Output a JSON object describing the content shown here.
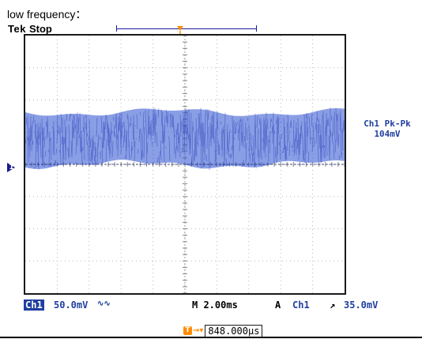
{
  "caption": "low frequency：",
  "scope": {
    "brand": "Tek",
    "acquisition_status": "Stop",
    "trigger_position_marker": "T",
    "ground_marker_label": "1"
  },
  "measurement": {
    "label": "Ch1 Pk-Pk",
    "value": "104mV"
  },
  "status_bar": {
    "channel_badge": "Ch1",
    "volts_per_div": "50.0mV",
    "coupling_symbol": "∿∿",
    "timebase": "M 2.00ms",
    "trigger_mode": "A",
    "trigger_source": "Ch1",
    "trigger_slope": "↗",
    "trigger_level": "35.0mV"
  },
  "delay": {
    "icon": "T",
    "arrow": "→▾",
    "value": "848.000µs"
  },
  "colors": {
    "trace": "#2a4fd0",
    "accent_orange": "#ff8c00",
    "label_blue": "#1f3f9f"
  }
}
